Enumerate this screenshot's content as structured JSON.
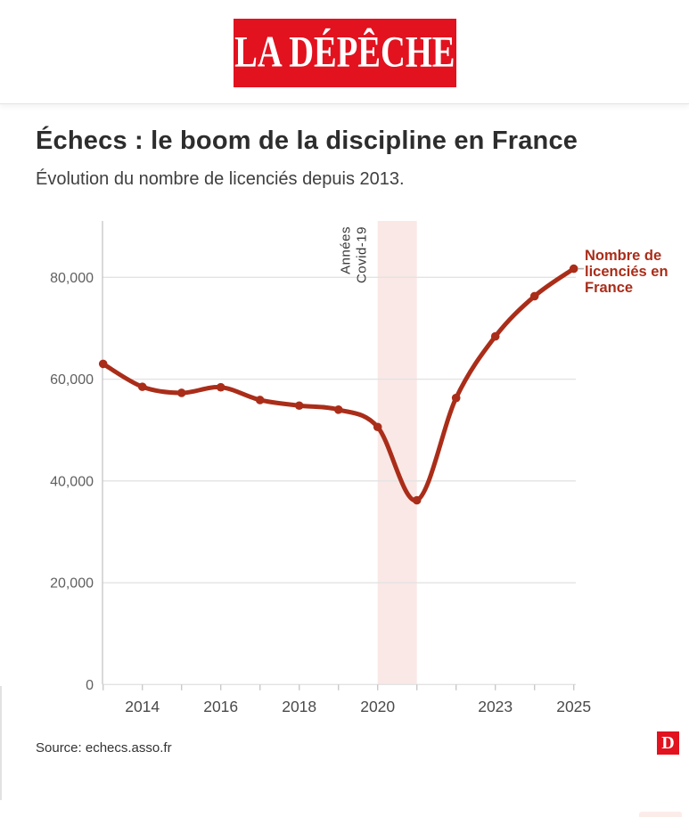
{
  "header": {
    "logo_text": "LA DÉPÊCHE",
    "brand_color": "#e2121f"
  },
  "article": {
    "title": "Échecs : le boom de la discipline en France",
    "subtitle": "Évolution du nombre de licenciés depuis 2013."
  },
  "chart_data": {
    "type": "line",
    "title": "",
    "xlabel": "",
    "ylabel": "",
    "x": [
      2013,
      2014,
      2015,
      2016,
      2017,
      2018,
      2019,
      2020,
      2021,
      2022,
      2023,
      2024,
      2025
    ],
    "series": [
      {
        "name": "Nombre de licenciés en France",
        "label_lines": [
          "Nombre de",
          "licenciés en",
          "France"
        ],
        "values": [
          63000,
          58500,
          57300,
          58400,
          55900,
          54800,
          54000,
          50600,
          36200,
          56300,
          68400,
          76300,
          81700
        ],
        "color": "#aa2d19"
      }
    ],
    "ylim": [
      0,
      91000
    ],
    "y_ticks": [
      0,
      20000,
      40000,
      60000,
      80000
    ],
    "x_tick_labels": [
      "2014",
      "2016",
      "2018",
      "2020",
      "2023",
      "2025"
    ],
    "grid": "horizontal",
    "legend_position": "right-of-last-point",
    "annotations": {
      "band": {
        "from": 2020,
        "to": 2021,
        "color": "#f9e8e6",
        "label_lines": [
          "Années",
          "Covid-19"
        ]
      }
    },
    "colors": {
      "gridline": "#e3e3e3",
      "axis": "#c9c9c9",
      "y_label": "#606060",
      "x_label": "#4a4a4a",
      "annotation_text": "#3a3a3a",
      "legend_connector": "#b3b3b3"
    }
  },
  "footer": {
    "source": "Source: echecs.asso.fr",
    "logo_letter": "D"
  }
}
